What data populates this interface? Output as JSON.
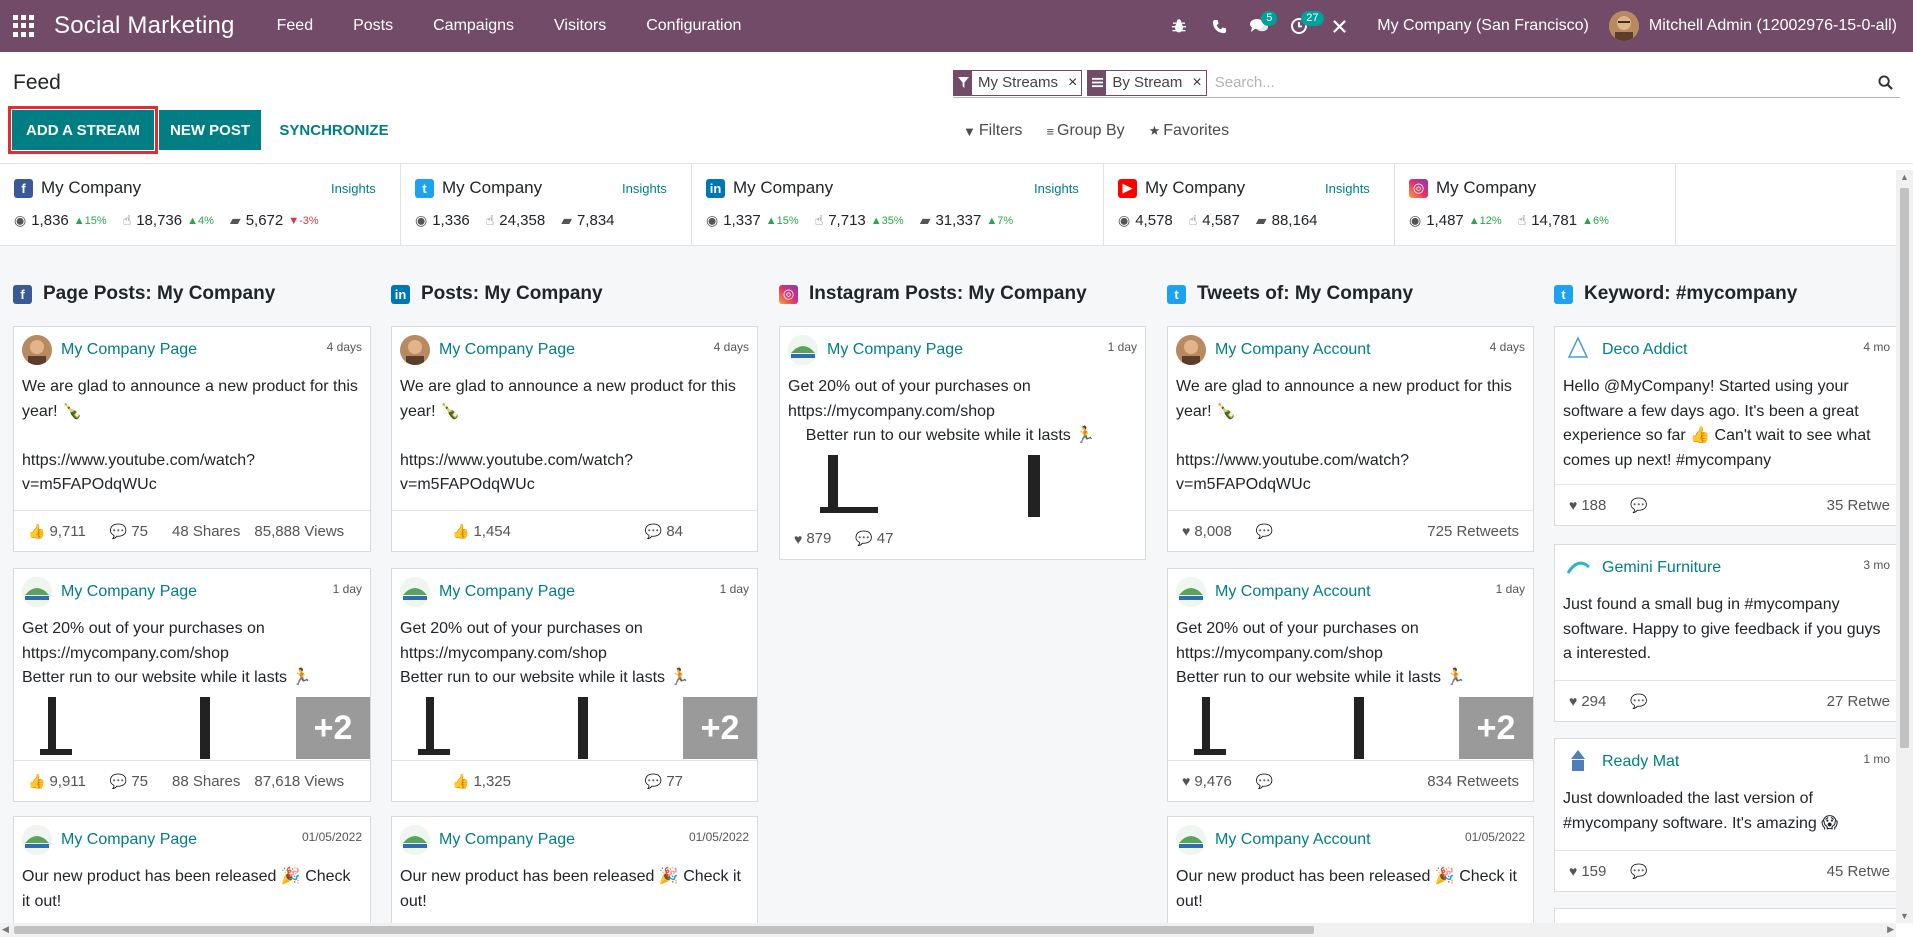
{
  "topbar": {
    "app_title": "Social Marketing",
    "menu": [
      "Feed",
      "Posts",
      "Campaigns",
      "Visitors",
      "Configuration"
    ],
    "chat_badge": "5",
    "activity_badge": "27",
    "company": "My Company (San Francisco)",
    "user": "Mitchell Admin (12002976-15-0-all)"
  },
  "control": {
    "breadcrumb": "Feed",
    "add_stream": "ADD A STREAM",
    "new_post": "NEW POST",
    "synchronize": "SYNCHRONIZE",
    "facets": [
      "My Streams",
      "By Stream"
    ],
    "search_placeholder": "Search...",
    "filters": "Filters",
    "group_by": "Group By",
    "favorites": "Favorites"
  },
  "stats": [
    {
      "network": "facebook",
      "name": "My Company",
      "insights": "Insights",
      "m1": "1,836",
      "t1": "15%",
      "t1dir": "up",
      "m2": "18,736",
      "t2": "4%",
      "t2dir": "up",
      "m3": "5,672",
      "t3": "-3%",
      "t3dir": "down"
    },
    {
      "network": "twitter",
      "name": "My Company",
      "insights": "Insights",
      "m1": "1,336",
      "m2": "24,358",
      "m3": "7,834"
    },
    {
      "network": "linkedin",
      "name": "My Company",
      "insights": "Insights",
      "m1": "1,337",
      "t1": "15%",
      "t1dir": "up",
      "m2": "7,713",
      "t2": "35%",
      "t2dir": "up",
      "m3": "31,337",
      "t3": "7%",
      "t3dir": "up"
    },
    {
      "network": "youtube",
      "name": "My Company",
      "insights": "Insights",
      "m1": "4,578",
      "m2": "4,587",
      "m3": "88,164"
    },
    {
      "network": "instagram",
      "name": "My Company",
      "m1": "1,487",
      "t1": "12%",
      "t1dir": "up",
      "m2": "14,781",
      "t2": "6%",
      "t2dir": "up"
    }
  ],
  "columns": [
    {
      "title": "Page Posts: My Company",
      "network": "facebook",
      "cards": [
        {
          "author": "My Company Page",
          "date": "4 days",
          "avatar": "person",
          "text": "We are glad to announce a new product for this year! 🍾\n\nhttps://www.youtube.com/watch?v=m5FAPOdqWUc",
          "likes": "9,711",
          "comments": "75",
          "shares": "48 Shares",
          "views": "85,888 Views"
        },
        {
          "author": "My Company Page",
          "date": "1 day",
          "avatar": "logo",
          "text": "Get 20% out of your purchases on https://mycompany.com/shop\nBetter run to our website while it lasts 🏃",
          "likes": "9,911",
          "comments": "75",
          "shares": "88 Shares",
          "views": "87,618 Views",
          "images": true,
          "plus": "+2"
        },
        {
          "author": "My Company Page",
          "date": "01/05/2022",
          "avatar": "logo",
          "text": "Our new product has been released 🎉 Check it out!"
        }
      ]
    },
    {
      "title": "Posts: My Company",
      "network": "linkedin",
      "cards": [
        {
          "author": "My Company Page",
          "date": "4 days",
          "avatar": "person",
          "text": "We are glad to announce a new product for this year! 🍾\n\nhttps://www.youtube.com/watch?v=m5FAPOdqWUc",
          "likes": "1,454",
          "comments": "84"
        },
        {
          "author": "My Company Page",
          "date": "1 day",
          "avatar": "logo",
          "text": "Get 20% out of your purchases on https://mycompany.com/shop\nBetter run to our website while it lasts 🏃",
          "likes": "1,325",
          "comments": "77",
          "images": true,
          "plus": "+2"
        },
        {
          "author": "My Company Page",
          "date": "01/05/2022",
          "avatar": "logo",
          "text": "Our new product has been released 🎉 Check it out!"
        }
      ]
    },
    {
      "title": "Instagram Posts: My Company",
      "network": "instagram",
      "cards": [
        {
          "author": "My Company Page",
          "date": "1 day",
          "avatar": "logo",
          "text": "Get 20% out of your purchases on https://mycompany.com/shop\n    Better run to our website while it lasts 🏃",
          "likes": "879",
          "comments": "47",
          "images": true
        }
      ]
    },
    {
      "title": "Tweets of: My Company",
      "network": "twitter",
      "cards": [
        {
          "author": "My Company Account",
          "date": "4 days",
          "avatar": "person",
          "text": "We are glad to announce a new product for this year! 🍾\n\nhttps://www.youtube.com/watch?v=m5FAPOdqWUc",
          "likes": "8,008",
          "comments": "",
          "retweets": "725 Retweets"
        },
        {
          "author": "My Company Account",
          "date": "1 day",
          "avatar": "logo",
          "text": "Get 20% out of your purchases on https://mycompany.com/shop\nBetter run to our website while it lasts 🏃",
          "likes": "9,476",
          "comments": "",
          "retweets": "834 Retweets",
          "images": true,
          "plus": "+2"
        },
        {
          "author": "My Company Account",
          "date": "01/05/2022",
          "avatar": "logo",
          "text": "Our new product has been released 🎉 Check it out!"
        }
      ]
    },
    {
      "title": "Keyword: #mycompany",
      "network": "twitter",
      "cards": [
        {
          "author": "Deco Addict",
          "date": "4 mo",
          "avatar": "deco",
          "text": "Hello @MyCompany! Started using your software a few days ago. It's been a great experience so far 👍 Can't wait to see what comes up next! #mycompany",
          "likes": "188",
          "comments": "",
          "retweets": "35 Retwe"
        },
        {
          "author": "Gemini Furniture",
          "date": "3 mo",
          "avatar": "gemini",
          "text": "Just found a small bug in #mycompany software. Happy to give feedback if you guys a interested.",
          "likes": "294",
          "comments": "",
          "retweets": "27 Retwe"
        },
        {
          "author": "Ready Mat",
          "date": "1 mo",
          "avatar": "ready",
          "text": "Just downloaded the last version of #mycompany software. It's amazing 😱",
          "likes": "159",
          "comments": "",
          "retweets": "45 Retwe"
        }
      ]
    }
  ]
}
